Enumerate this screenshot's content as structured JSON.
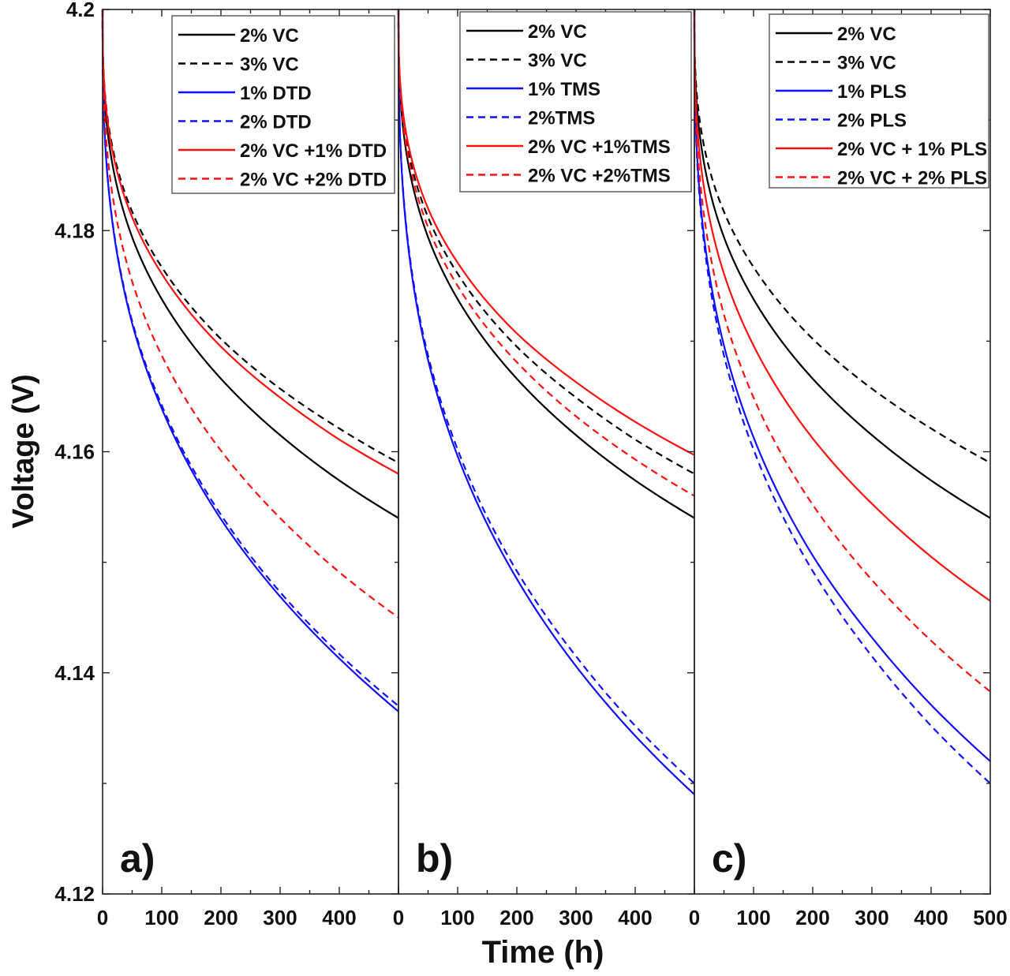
{
  "chart_data": [
    {
      "type": "line",
      "panel_label": "a)",
      "x": [
        0,
        10,
        50,
        100,
        200,
        300,
        400,
        500
      ],
      "xlim": [
        0,
        500
      ],
      "xticks": [
        "0",
        "100",
        "200",
        "300",
        "400"
      ],
      "series": [
        {
          "name": "2% VC",
          "color": "#000000",
          "dash": false,
          "values": [
            4.2,
            4.1883,
            4.1794,
            4.1738,
            4.1666,
            4.1615,
            4.1574,
            4.154
          ]
        },
        {
          "name": "3% VC",
          "color": "#000000",
          "dash": true,
          "values": [
            4.2,
            4.1896,
            4.1817,
            4.1767,
            4.1702,
            4.1657,
            4.1621,
            4.159
          ]
        },
        {
          "name": "1% DTD",
          "color": "#1010ff",
          "dash": false,
          "values": [
            4.2,
            4.1839,
            4.1716,
            4.1639,
            4.1539,
            4.1469,
            4.1413,
            4.1365
          ]
        },
        {
          "name": "2% DTD",
          "color": "#1010ff",
          "dash": true,
          "values": [
            4.2,
            4.184,
            4.1718,
            4.1642,
            4.1543,
            4.1473,
            4.1417,
            4.137
          ]
        },
        {
          "name": "2% VC +1% DTD",
          "color": "#ff1010",
          "dash": false,
          "values": [
            4.2,
            4.1893,
            4.1812,
            4.1761,
            4.1695,
            4.1649,
            4.1611,
            4.158
          ]
        },
        {
          "name": "2% VC +2% DTD",
          "color": "#ff1010",
          "dash": true,
          "values": [
            4.2,
            4.186,
            4.1754,
            4.1687,
            4.1601,
            4.154,
            4.1491,
            4.145
          ]
        }
      ]
    },
    {
      "type": "line",
      "panel_label": "b)",
      "x": [
        0,
        10,
        50,
        100,
        200,
        300,
        400,
        500
      ],
      "xlim": [
        0,
        500
      ],
      "xticks": [
        "0",
        "100",
        "200",
        "300",
        "400"
      ],
      "series": [
        {
          "name": "2% VC",
          "color": "#000000",
          "dash": false,
          "values": [
            4.2,
            4.1883,
            4.1794,
            4.1738,
            4.1666,
            4.1615,
            4.1574,
            4.154
          ]
        },
        {
          "name": "3% VC",
          "color": "#000000",
          "dash": true,
          "values": [
            4.2,
            4.1893,
            4.1812,
            4.1761,
            4.1695,
            4.1649,
            4.1611,
            4.158
          ]
        },
        {
          "name": "1% TMS",
          "color": "#1010ff",
          "dash": false,
          "values": [
            4.2,
            4.182,
            4.1683,
            4.1596,
            4.1485,
            4.1406,
            4.1343,
            4.129
          ]
        },
        {
          "name": "2%TMS",
          "color": "#1010ff",
          "dash": true,
          "values": [
            4.2,
            4.1822,
            4.1687,
            4.1602,
            4.1492,
            4.1415,
            4.1352,
            4.13
          ]
        },
        {
          "name": "2% VC +1%TMS",
          "color": "#ff1010",
          "dash": false,
          "values": [
            4.2,
            4.1898,
            4.182,
            4.1771,
            4.1707,
            4.1663,
            4.1627,
            4.1597
          ]
        },
        {
          "name": "2% VC +2%TMS",
          "color": "#ff1010",
          "dash": true,
          "values": [
            4.2,
            4.1888,
            4.1803,
            4.175,
            4.1681,
            4.1632,
            4.1593,
            4.156
          ]
        }
      ]
    },
    {
      "type": "line",
      "panel_label": "c)",
      "x": [
        0,
        10,
        50,
        100,
        200,
        300,
        400,
        500
      ],
      "xlim": [
        0,
        500
      ],
      "xticks": [
        "0",
        "100",
        "200",
        "300",
        "400",
        "500"
      ],
      "series": [
        {
          "name": "2% VC",
          "color": "#000000",
          "dash": false,
          "values": [
            4.2,
            4.1883,
            4.1794,
            4.1738,
            4.1666,
            4.1615,
            4.1574,
            4.154
          ]
        },
        {
          "name": "3% VC",
          "color": "#000000",
          "dash": true,
          "values": [
            4.2,
            4.1896,
            4.1817,
            4.1767,
            4.1702,
            4.1657,
            4.1621,
            4.159
          ]
        },
        {
          "name": "1% PLS",
          "color": "#1010ff",
          "dash": false,
          "values": [
            4.2,
            4.1827,
            4.1696,
            4.1613,
            4.1506,
            4.1432,
            4.1371,
            4.132
          ]
        },
        {
          "name": "2% PLS",
          "color": "#1010ff",
          "dash": true,
          "values": [
            4.2,
            4.1822,
            4.1687,
            4.1602,
            4.1492,
            4.1415,
            4.1352,
            4.13
          ]
        },
        {
          "name": "2% VC + 1% PLS",
          "color": "#ff1010",
          "dash": false,
          "values": [
            4.2,
            4.1864,
            4.1761,
            4.1696,
            4.1612,
            4.1553,
            4.1505,
            4.1465
          ]
        },
        {
          "name": "2% VC + 2% PLS",
          "color": "#ff1010",
          "dash": true,
          "values": [
            4.2,
            4.1843,
            4.1724,
            4.1649,
            4.1552,
            4.1484,
            4.1429,
            4.1383
          ]
        }
      ]
    }
  ],
  "axes": {
    "ylabel": "Voltage (V)",
    "xlabel": "Time (h)",
    "ylim": [
      4.12,
      4.2
    ],
    "yticks": [
      "4.12",
      "4.14",
      "4.16",
      "4.18",
      "4.2"
    ],
    "ytick_values": [
      4.12,
      4.14,
      4.16,
      4.18,
      4.2
    ],
    "grid": false,
    "legend_placement": "top-right"
  }
}
